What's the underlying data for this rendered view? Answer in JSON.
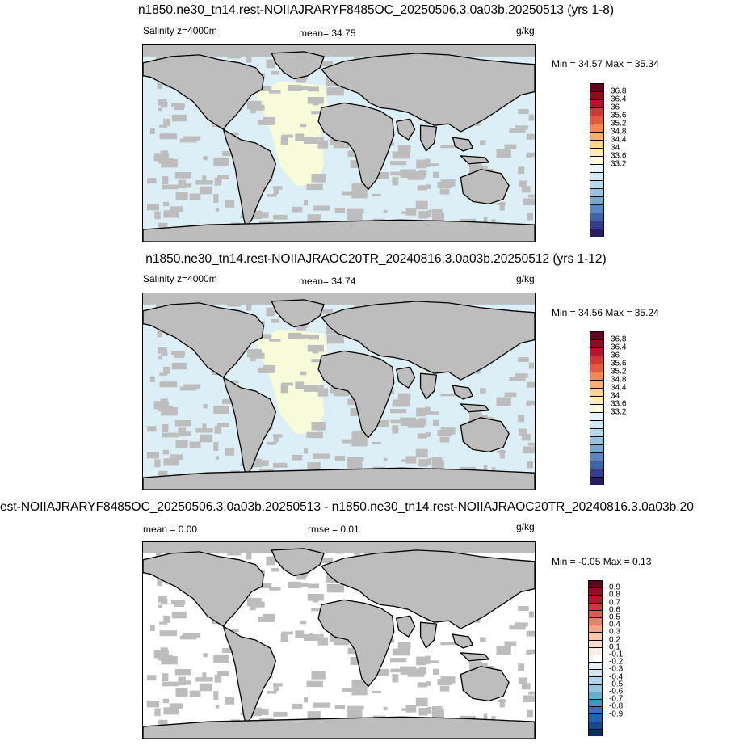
{
  "panels": [
    {
      "title": "n1850.ne30_tn14.rest-NOIIAJRARYF8485OC_20250506.3.0a03b.20250513 (yrs 1-8)",
      "left_label": "Salinity z=4000m",
      "center_label": "mean=  34.75",
      "units": "g/kg",
      "minmax": "Min =  34.57 Max =  35.34",
      "colorbar_labels": [
        "36.8",
        "36.4",
        "36",
        "35.6",
        "35.2",
        "34.8",
        "34.4",
        "34",
        "33.6",
        "33.2"
      ],
      "ocean_fill": "light-blue",
      "atlantic_fill": "pale-yellow"
    },
    {
      "title": "n1850.ne30_tn14.rest-NOIIAJRAOC20TR_20240816.3.0a03b.20250512 (yrs 1-12)",
      "left_label": "Salinity z=4000m",
      "center_label": "mean=  34.74",
      "units": "g/kg",
      "minmax": "Min =  34.56 Max =  35.24",
      "colorbar_labels": [
        "36.8",
        "36.4",
        "36",
        "35.6",
        "35.2",
        "34.8",
        "34.4",
        "34",
        "33.6",
        "33.2"
      ],
      "ocean_fill": "light-blue",
      "atlantic_fill": "pale-yellow"
    },
    {
      "title": "est-NOIIAJRARYF8485OC_20250506.3.0a03b.20250513 - n1850.ne30_tn14.rest-NOIIAJRAOC20TR_20240816.3.0a03b.20",
      "left_label": "mean =   0.00",
      "center_label": "rmse =   0.01",
      "units": "g/kg",
      "minmax": "Min =  -0.05 Max =   0.13",
      "colorbar_labels": [
        "0.9",
        "0.8",
        "0.7",
        "0.6",
        "0.5",
        "0.4",
        "0.3",
        "0.2",
        "0.1",
        "-0.1",
        "-0.2",
        "-0.3",
        "-0.4",
        "-0.5",
        "-0.6",
        "-0.7",
        "-0.8",
        "-0.9"
      ],
      "ocean_fill": "white",
      "atlantic_fill": "white"
    }
  ],
  "colors": {
    "land": "#bdbdbd",
    "ocean_light_blue": "#dceef6",
    "pale_yellow": "#f7fbd9",
    "white": "#ffffff",
    "salinity_scale": [
      "#67001f",
      "#8f0c1e",
      "#b2182b",
      "#cf3a30",
      "#e35a3c",
      "#f3894f",
      "#fbb068",
      "#fdd38c",
      "#fdeeae",
      "#fbfbd4",
      "#e8f4f7",
      "#d0e8f1",
      "#b5d8ea",
      "#96c3e0",
      "#74a9d2",
      "#5788c0",
      "#3f65a8",
      "#313d8e",
      "#2a1c63"
    ],
    "diff_scale": [
      "#67001f",
      "#950e25",
      "#b2182b",
      "#c43c3c",
      "#d6604d",
      "#e58368",
      "#f4a582",
      "#f8c7a9",
      "#fddbc7",
      "#fdeee4",
      "#ffffff",
      "#e8f2f8",
      "#d1e5f0",
      "#b0d3e7",
      "#92c5de",
      "#6aabd2",
      "#4393c3",
      "#2e79b5",
      "#2166ac",
      "#134b87",
      "#053061"
    ]
  }
}
